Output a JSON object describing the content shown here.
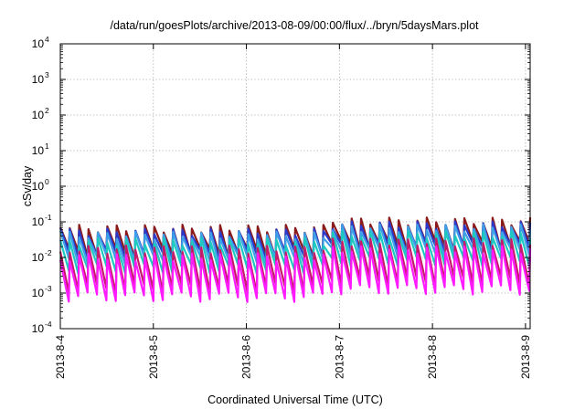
{
  "chart_data": {
    "type": "line",
    "title": "/data/run/goesPlots/archive/2013-08-09/00:00/flux/../bryn/5daysMars.plot",
    "xlabel": "Coordinated Universal Time (UTC)",
    "ylabel": "cSv/day",
    "y_scale": "log",
    "ylim": [
      0.0001,
      10000
    ],
    "xlim": [
      "2013-08-04",
      "2013-08-09"
    ],
    "grid": true,
    "y_ticks": [
      {
        "base": "10",
        "exp": "-4"
      },
      {
        "base": "10",
        "exp": "-3"
      },
      {
        "base": "10",
        "exp": "-2"
      },
      {
        "base": "10",
        "exp": "-1"
      },
      {
        "base": "10",
        "exp": "0"
      },
      {
        "base": "10",
        "exp": "1"
      },
      {
        "base": "10",
        "exp": "2"
      },
      {
        "base": "10",
        "exp": "3"
      },
      {
        "base": "10",
        "exp": "4"
      }
    ],
    "x_ticks": [
      "2013-8-4",
      "2013-8-5",
      "2013-8-6",
      "2013-8-7",
      "2013-8-8",
      "2013-8-9"
    ],
    "sawtooth": {
      "cycles": 50,
      "start_day": 0,
      "end_day": 5.05,
      "peak_decay_fraction": 0.9,
      "envelope_base": 1.0,
      "envelope_late": 1.6
    },
    "series": [
      {
        "color": "#8b1a1a",
        "peak": 0.07,
        "trough": 0.014
      },
      {
        "color": "#2a39c9",
        "peak": 0.055,
        "trough": 0.012
      },
      {
        "color": "#3da0e8",
        "peak": 0.045,
        "trough": 0.009
      },
      {
        "color": "#1ec9c0",
        "peak": 0.03,
        "trough": 0.005
      },
      {
        "color": "#c51a6a",
        "peak": 0.018,
        "trough": 0.0014
      },
      {
        "color": "#ff1aff",
        "peak": 0.011,
        "trough": 0.0008
      }
    ]
  }
}
